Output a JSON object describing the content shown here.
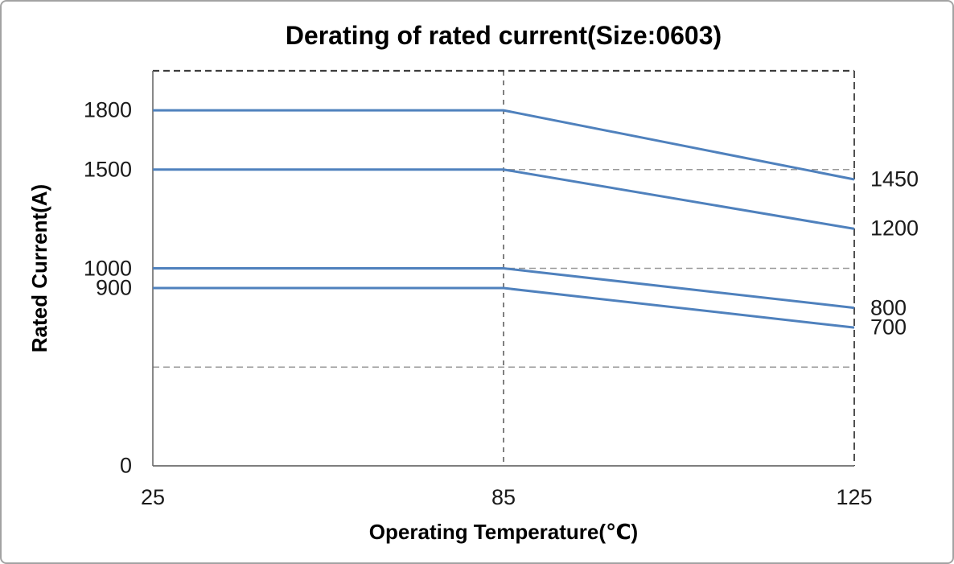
{
  "chart_data": {
    "type": "line",
    "title": "Derating of rated current(Size:0603)",
    "xlabel": "Operating Temperature(℃)",
    "ylabel": "Rated Current(A)",
    "x_categories": [
      25,
      85,
      125
    ],
    "x_tick_labels": [
      "25",
      "85",
      "125"
    ],
    "ylim": [
      0,
      2000
    ],
    "gridline_values": [
      500,
      1000,
      1500
    ],
    "top_border_value": 2000,
    "marker_x_value": 85,
    "series": [
      {
        "name": "rated-1800A",
        "values": [
          1800,
          1800,
          1450
        ]
      },
      {
        "name": "rated-1500A",
        "values": [
          1500,
          1500,
          1200
        ]
      },
      {
        "name": "rated-1000A",
        "values": [
          1000,
          1000,
          800
        ]
      },
      {
        "name": "rated-900A",
        "values": [
          900,
          900,
          700
        ]
      }
    ],
    "left_value_labels": [
      {
        "text": "1800",
        "value": 1800
      },
      {
        "text": "1500",
        "value": 1500
      },
      {
        "text": "1000",
        "value": 1000
      },
      {
        "text": "900",
        "value": 900
      },
      {
        "text": "0",
        "value": 0
      }
    ],
    "right_value_labels": [
      {
        "text": "1450",
        "value": 1450
      },
      {
        "text": "1200",
        "value": 1200
      },
      {
        "text": "800",
        "value": 800
      },
      {
        "text": "700",
        "value": 700
      }
    ],
    "legend": "none",
    "grid": "dashed horizontal gridlines every 500; dashed vertical marker line at 85",
    "colors": {
      "series_line": "#4F81BD",
      "gridline": "#999999",
      "plot_border_dash": "#3d3d3d",
      "axis_line": "#6b6b6b",
      "marker_line": "#808080",
      "tick_text": "#1a1a1a",
      "title_text": "#000000",
      "frame_border": "#a3a3a3"
    }
  }
}
